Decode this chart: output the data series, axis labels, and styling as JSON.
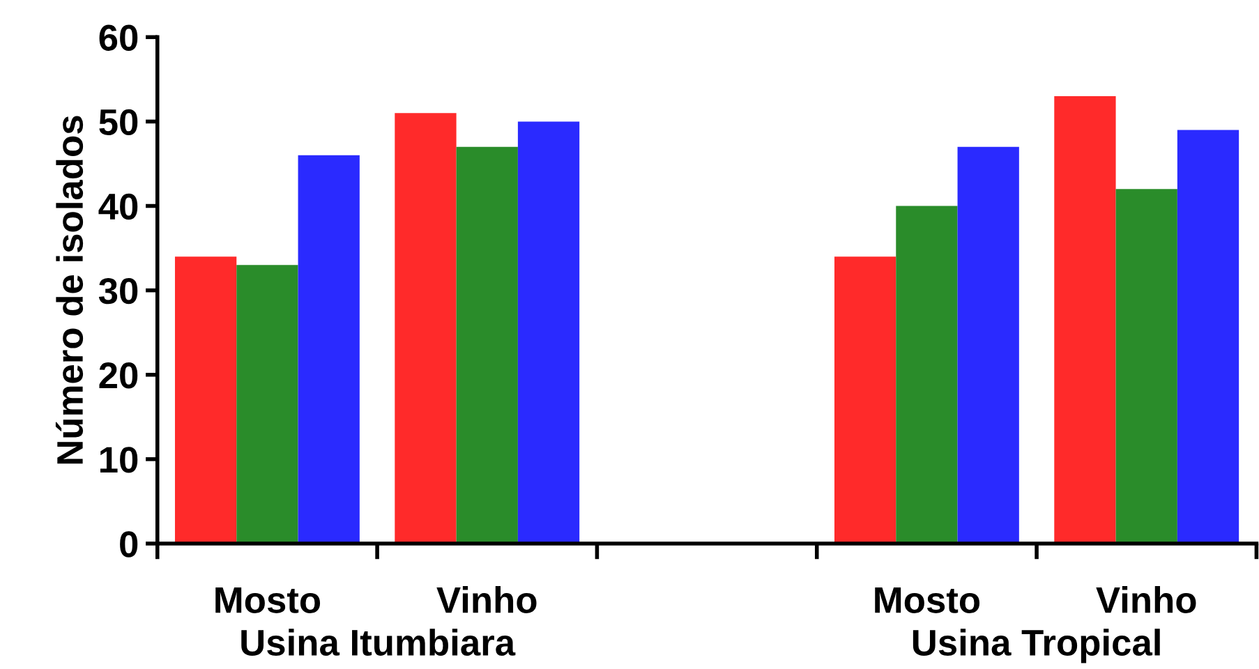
{
  "chart_data": {
    "type": "bar",
    "ylabel": "Número de isolados",
    "categories": [
      "Mosto",
      "Vinho",
      null,
      "Mosto",
      "Vinho"
    ],
    "series": [
      {
        "color": "#ff2a2a",
        "values": [
          34,
          51,
          null,
          34,
          53
        ]
      },
      {
        "color": "#2a8c2a",
        "values": [
          33,
          47,
          null,
          40,
          42
        ]
      },
      {
        "color": "#2a2aff",
        "values": [
          46,
          50,
          null,
          47,
          49
        ]
      }
    ],
    "ylim": [
      0,
      60
    ],
    "yticks": [
      0,
      10,
      20,
      30,
      40,
      50,
      60
    ],
    "grid": false,
    "legend": false,
    "annotations": [
      "Usina Itumbiara",
      "Usina Tropical"
    ]
  }
}
